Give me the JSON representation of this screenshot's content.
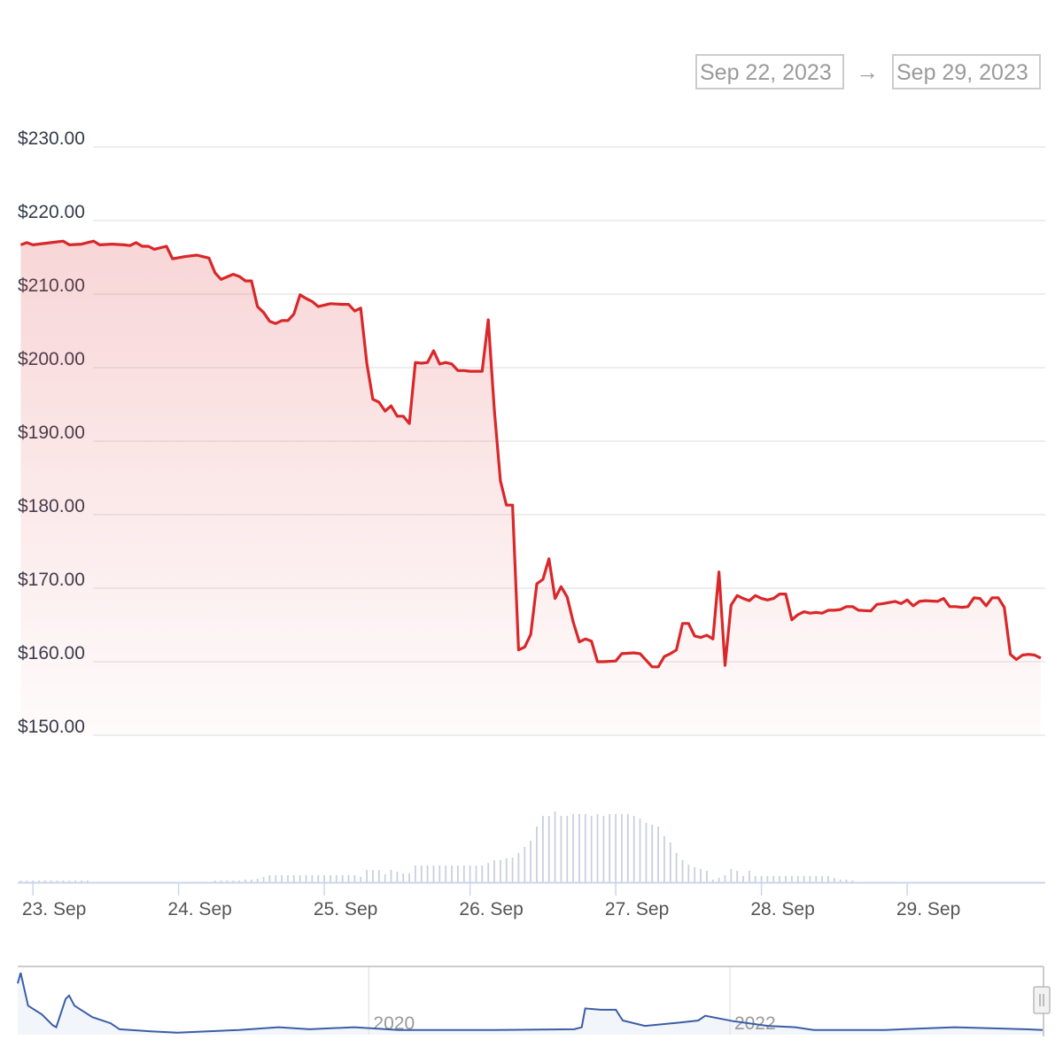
{
  "range_selector": {
    "from": "Sep 22, 2023",
    "to": "Sep 29, 2023",
    "arrow": "→"
  },
  "colors": {
    "price_line": "#d9272a",
    "volume_bars": "#c9d0dd",
    "navigator_line": "#3a5ea6",
    "grid": "#e9e9e9"
  },
  "chart_data": {
    "type": "line",
    "title": "",
    "xlabel": "",
    "ylabel": "",
    "xlim": [
      "2023-09-22 21:30",
      "2023-09-29 22:45"
    ],
    "ylim": [
      150,
      230
    ],
    "grid": true,
    "y_ticks": [
      "$230.00",
      "$220.00",
      "$210.00",
      "$200.00",
      "$190.00",
      "$180.00",
      "$170.00",
      "$160.00",
      "$150.00"
    ],
    "y_tick_values": [
      230,
      220,
      210,
      200,
      190,
      180,
      170,
      160,
      150
    ],
    "x_ticks": [
      {
        "label": "23. Sep",
        "date": "2023-09-23 00:00"
      },
      {
        "label": "24. Sep",
        "date": "2023-09-24 00:00"
      },
      {
        "label": "25. Sep",
        "date": "2023-09-25 00:00"
      },
      {
        "label": "26. Sep",
        "date": "2023-09-26 00:00"
      },
      {
        "label": "27. Sep",
        "date": "2023-09-27 00:00"
      },
      {
        "label": "28. Sep",
        "date": "2023-09-28 00:00"
      },
      {
        "label": "29. Sep",
        "date": "2023-09-29 00:00"
      }
    ],
    "price": [
      [
        "2023-09-22 22:00",
        216.7
      ],
      [
        "2023-09-22 23:00",
        217.0
      ],
      [
        "2023-09-23 00:00",
        216.7
      ],
      [
        "2023-09-23 03:00",
        217.0
      ],
      [
        "2023-09-23 05:00",
        217.2
      ],
      [
        "2023-09-23 06:00",
        216.7
      ],
      [
        "2023-09-23 08:00",
        216.8
      ],
      [
        "2023-09-23 10:00",
        217.2
      ],
      [
        "2023-09-23 11:00",
        216.7
      ],
      [
        "2023-09-23 13:00",
        216.8
      ],
      [
        "2023-09-23 15:00",
        216.7
      ],
      [
        "2023-09-23 16:00",
        216.6
      ],
      [
        "2023-09-23 17:00",
        217.0
      ],
      [
        "2023-09-23 18:00",
        216.5
      ],
      [
        "2023-09-23 19:00",
        216.5
      ],
      [
        "2023-09-23 20:00",
        216.1
      ],
      [
        "2023-09-23 22:00",
        216.5
      ],
      [
        "2023-09-23 23:00",
        214.8
      ],
      [
        "2023-09-24 01:00",
        215.1
      ],
      [
        "2023-09-24 03:00",
        215.3
      ],
      [
        "2023-09-24 04:00",
        215.1
      ],
      [
        "2023-09-24 05:00",
        214.9
      ],
      [
        "2023-09-24 06:00",
        212.9
      ],
      [
        "2023-09-24 07:00",
        212.0
      ],
      [
        "2023-09-24 09:00",
        212.7
      ],
      [
        "2023-09-24 10:00",
        212.4
      ],
      [
        "2023-09-24 11:00",
        211.8
      ],
      [
        "2023-09-24 12:00",
        211.8
      ],
      [
        "2023-09-24 13:00",
        208.3
      ],
      [
        "2023-09-24 14:00",
        207.5
      ],
      [
        "2023-09-24 15:00",
        206.3
      ],
      [
        "2023-09-24 16:00",
        206.0
      ],
      [
        "2023-09-24 17:00",
        206.4
      ],
      [
        "2023-09-24 18:00",
        206.4
      ],
      [
        "2023-09-24 19:00",
        207.3
      ],
      [
        "2023-09-24 20:00",
        209.9
      ],
      [
        "2023-09-24 21:00",
        209.4
      ],
      [
        "2023-09-24 22:00",
        209.0
      ],
      [
        "2023-09-24 23:00",
        208.3
      ],
      [
        "2023-09-25 01:00",
        208.7
      ],
      [
        "2023-09-25 03:00",
        208.6
      ],
      [
        "2023-09-25 04:00",
        208.6
      ],
      [
        "2023-09-25 05:00",
        207.7
      ],
      [
        "2023-09-25 06:00",
        208.1
      ],
      [
        "2023-09-25 07:00",
        200.6
      ],
      [
        "2023-09-25 08:00",
        195.7
      ],
      [
        "2023-09-25 09:00",
        195.3
      ],
      [
        "2023-09-25 10:00",
        194.1
      ],
      [
        "2023-09-25 11:00",
        194.8
      ],
      [
        "2023-09-25 12:00",
        193.4
      ],
      [
        "2023-09-25 13:00",
        193.4
      ],
      [
        "2023-09-25 14:00",
        192.4
      ],
      [
        "2023-09-25 15:00",
        200.7
      ],
      [
        "2023-09-25 16:00",
        200.6
      ],
      [
        "2023-09-25 17:00",
        200.7
      ],
      [
        "2023-09-25 18:00",
        202.3
      ],
      [
        "2023-09-25 19:00",
        200.5
      ],
      [
        "2023-09-25 20:00",
        200.7
      ],
      [
        "2023-09-25 21:00",
        200.5
      ],
      [
        "2023-09-25 22:00",
        199.6
      ],
      [
        "2023-09-25 23:00",
        199.6
      ],
      [
        "2023-09-26 00:00",
        199.5
      ],
      [
        "2023-09-26 02:00",
        199.5
      ],
      [
        "2023-09-26 03:00",
        206.5
      ],
      [
        "2023-09-26 04:00",
        194.3
      ],
      [
        "2023-09-26 05:00",
        184.6
      ],
      [
        "2023-09-26 06:00",
        181.3
      ],
      [
        "2023-09-26 07:00",
        181.3
      ],
      [
        "2023-09-26 08:00",
        161.6
      ],
      [
        "2023-09-26 09:00",
        162.0
      ],
      [
        "2023-09-26 10:00",
        163.7
      ],
      [
        "2023-09-26 11:00",
        170.6
      ],
      [
        "2023-09-26 12:00",
        171.2
      ],
      [
        "2023-09-26 13:00",
        174.0
      ],
      [
        "2023-09-26 14:00",
        168.6
      ],
      [
        "2023-09-26 15:00",
        170.2
      ],
      [
        "2023-09-26 16:00",
        168.8
      ],
      [
        "2023-09-26 17:00",
        165.4
      ],
      [
        "2023-09-26 18:00",
        162.7
      ],
      [
        "2023-09-26 19:00",
        163.1
      ],
      [
        "2023-09-26 20:00",
        162.8
      ],
      [
        "2023-09-26 21:00",
        160.0
      ],
      [
        "2023-09-26 22:00",
        160.0
      ],
      [
        "2023-09-27 00:00",
        160.1
      ],
      [
        "2023-09-27 01:00",
        161.1
      ],
      [
        "2023-09-27 03:00",
        161.2
      ],
      [
        "2023-09-27 04:00",
        161.1
      ],
      [
        "2023-09-27 05:00",
        160.2
      ],
      [
        "2023-09-27 06:00",
        159.3
      ],
      [
        "2023-09-27 07:00",
        159.3
      ],
      [
        "2023-09-27 08:00",
        160.7
      ],
      [
        "2023-09-27 09:00",
        161.1
      ],
      [
        "2023-09-27 10:00",
        161.6
      ],
      [
        "2023-09-27 11:00",
        165.2
      ],
      [
        "2023-09-27 12:00",
        165.2
      ],
      [
        "2023-09-27 13:00",
        163.5
      ],
      [
        "2023-09-27 14:00",
        163.3
      ],
      [
        "2023-09-27 15:00",
        163.6
      ],
      [
        "2023-09-27 16:00",
        163.1
      ],
      [
        "2023-09-27 17:00",
        172.2
      ],
      [
        "2023-09-27 18:00",
        159.5
      ],
      [
        "2023-09-27 19:00",
        167.7
      ],
      [
        "2023-09-27 20:00",
        169.0
      ],
      [
        "2023-09-27 21:00",
        168.6
      ],
      [
        "2023-09-27 22:00",
        168.3
      ],
      [
        "2023-09-27 23:00",
        169.0
      ],
      [
        "2023-09-28 00:00",
        168.6
      ],
      [
        "2023-09-28 01:00",
        168.4
      ],
      [
        "2023-09-28 02:00",
        168.6
      ],
      [
        "2023-09-28 03:00",
        169.2
      ],
      [
        "2023-09-28 04:00",
        169.2
      ],
      [
        "2023-09-28 05:00",
        165.7
      ],
      [
        "2023-09-28 06:00",
        166.4
      ],
      [
        "2023-09-28 07:00",
        166.8
      ],
      [
        "2023-09-28 08:00",
        166.6
      ],
      [
        "2023-09-28 09:00",
        166.7
      ],
      [
        "2023-09-28 10:00",
        166.6
      ],
      [
        "2023-09-28 11:00",
        167.0
      ],
      [
        "2023-09-28 12:00",
        167.0
      ],
      [
        "2023-09-28 13:00",
        167.1
      ],
      [
        "2023-09-28 14:00",
        167.5
      ],
      [
        "2023-09-28 15:00",
        167.5
      ],
      [
        "2023-09-28 16:00",
        167.0
      ],
      [
        "2023-09-28 18:00",
        166.9
      ],
      [
        "2023-09-28 19:00",
        167.8
      ],
      [
        "2023-09-28 20:00",
        167.9
      ],
      [
        "2023-09-28 22:00",
        168.2
      ],
      [
        "2023-09-28 23:00",
        167.9
      ],
      [
        "2023-09-29 00:00",
        168.4
      ],
      [
        "2023-09-29 01:00",
        167.6
      ],
      [
        "2023-09-29 02:00",
        168.2
      ],
      [
        "2023-09-29 03:00",
        168.3
      ],
      [
        "2023-09-29 05:00",
        168.2
      ],
      [
        "2023-09-29 06:00",
        168.6
      ],
      [
        "2023-09-29 07:00",
        167.5
      ],
      [
        "2023-09-29 08:00",
        167.5
      ],
      [
        "2023-09-29 09:00",
        167.4
      ],
      [
        "2023-09-29 10:00",
        167.5
      ],
      [
        "2023-09-29 11:00",
        168.7
      ],
      [
        "2023-09-29 12:00",
        168.6
      ],
      [
        "2023-09-29 13:00",
        167.6
      ],
      [
        "2023-09-29 14:00",
        168.7
      ],
      [
        "2023-09-29 15:00",
        168.7
      ],
      [
        "2023-09-29 16:00",
        167.4
      ],
      [
        "2023-09-29 17:00",
        161.0
      ],
      [
        "2023-09-29 18:00",
        160.3
      ],
      [
        "2023-09-29 19:00",
        160.9
      ],
      [
        "2023-09-29 20:00",
        161.0
      ],
      [
        "2023-09-29 21:00",
        160.9
      ],
      [
        "2023-09-29 22:00",
        160.5
      ]
    ],
    "volume": {
      "type": "bar",
      "start": "2023-09-22 22:00",
      "interval_hours": 1,
      "ylim": [
        0,
        80
      ],
      "values": [
        2,
        2,
        2,
        2,
        2,
        2,
        2,
        2,
        2,
        2,
        2,
        2,
        0,
        0,
        0,
        0,
        0,
        0,
        0,
        0,
        0,
        0,
        0,
        0,
        0,
        0,
        0,
        0,
        0,
        0,
        0,
        0,
        2,
        2,
        2,
        2,
        2,
        3,
        3,
        4,
        6,
        8,
        8,
        8,
        8,
        8,
        8,
        8,
        8,
        8,
        8,
        8,
        8,
        8,
        8,
        8,
        6,
        14,
        14,
        14,
        9,
        14,
        12,
        10,
        10,
        19,
        19,
        19,
        19,
        19,
        19,
        19,
        19,
        19,
        19,
        19,
        19,
        22,
        25,
        25,
        27,
        28,
        33,
        40,
        47,
        63,
        75,
        75,
        80,
        75,
        75,
        77,
        77,
        77,
        75,
        77,
        75,
        77,
        77,
        77,
        77,
        75,
        72,
        67,
        65,
        63,
        52,
        45,
        33,
        25,
        20,
        17,
        15,
        13,
        3,
        5,
        8,
        15,
        13,
        7,
        13,
        7,
        7,
        7,
        7,
        7,
        7,
        7,
        7,
        7,
        7,
        7,
        7,
        7,
        5,
        3,
        3,
        2,
        0,
        0,
        0,
        0,
        0,
        0,
        0,
        0,
        0,
        0,
        0,
        0,
        0,
        0,
        0,
        0,
        0,
        0,
        0,
        0,
        0,
        0,
        0,
        0,
        0,
        0,
        0,
        0,
        0,
        0,
        0
      ]
    },
    "navigator": {
      "type": "area",
      "xlim": [
        "2018-01-20",
        "2023-09-28"
      ],
      "ylim": [
        0,
        100
      ],
      "x_ticks": [
        {
          "label": "2020",
          "date": "2020-01-01"
        },
        {
          "label": "2022",
          "date": "2022-01-01"
        }
      ],
      "relative_level": [
        [
          "2018-01-20",
          76
        ],
        [
          "2018-01-26",
          92
        ],
        [
          "2018-02-10",
          43
        ],
        [
          "2018-03-10",
          30
        ],
        [
          "2018-04-01",
          14
        ],
        [
          "2018-04-08",
          11
        ],
        [
          "2018-04-27",
          53
        ],
        [
          "2018-05-04",
          58
        ],
        [
          "2018-05-15",
          43
        ],
        [
          "2018-06-20",
          26
        ],
        [
          "2018-07-27",
          17
        ],
        [
          "2018-08-14",
          8
        ],
        [
          "2018-10-16",
          5
        ],
        [
          "2018-12-09",
          3
        ],
        [
          "2019-04-13",
          7
        ],
        [
          "2019-07-02",
          11
        ],
        [
          "2019-09-03",
          8
        ],
        [
          "2019-12-02",
          11
        ],
        [
          "2020-03-02",
          7
        ],
        [
          "2020-09-13",
          7
        ],
        [
          "2021-02-20",
          8
        ],
        [
          "2021-03-07",
          11
        ],
        [
          "2021-03-14",
          39
        ],
        [
          "2021-04-15",
          37
        ],
        [
          "2021-05-15",
          37
        ],
        [
          "2021-05-29",
          21
        ],
        [
          "2021-07-13",
          13
        ],
        [
          "2021-09-23",
          18
        ],
        [
          "2021-10-29",
          21
        ],
        [
          "2021-11-12",
          28
        ],
        [
          "2022-01-08",
          20
        ],
        [
          "2022-03-19",
          13
        ],
        [
          "2022-05-13",
          11
        ],
        [
          "2022-06-20",
          7
        ],
        [
          "2022-11-11",
          7
        ],
        [
          "2023-04-01",
          11
        ],
        [
          "2023-08-22",
          8
        ],
        [
          "2023-09-28",
          7
        ]
      ]
    }
  }
}
